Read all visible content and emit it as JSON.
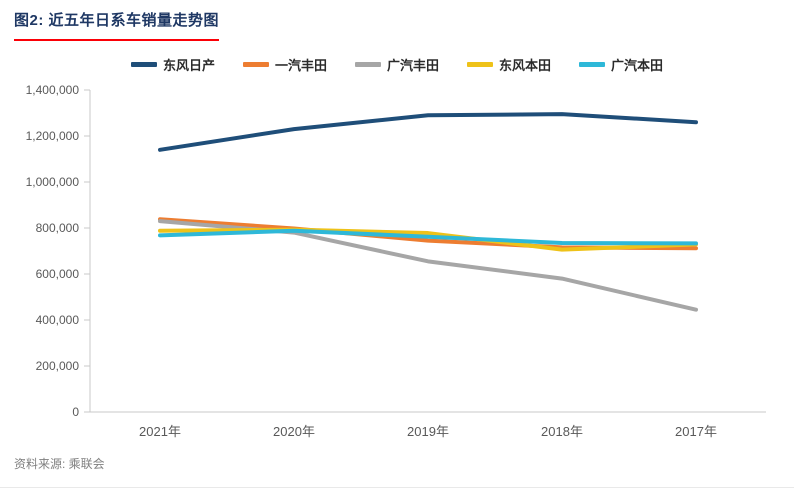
{
  "header": {
    "title": "图2: 近五年日系车销量走势图"
  },
  "footer": {
    "source": "资料来源: 乘联会"
  },
  "chart_data": {
    "type": "line",
    "title": "近五年日系车销量走势图",
    "categories": [
      "2021年",
      "2020年",
      "2019年",
      "2018年",
      "2017年"
    ],
    "series": [
      {
        "name": "东风日产",
        "color": "#1f4e79",
        "values": [
          1140000,
          1230000,
          1290000,
          1295000,
          1260000
        ]
      },
      {
        "name": "一汽丰田",
        "color": "#ed7d31",
        "values": [
          838000,
          798000,
          745000,
          716000,
          712000
        ]
      },
      {
        "name": "广汽丰田",
        "color": "#a6a6a6",
        "values": [
          830000,
          780000,
          655000,
          580000,
          445000
        ]
      },
      {
        "name": "东风本田",
        "color": "#eec219",
        "values": [
          788000,
          793000,
          778000,
          706000,
          729000
        ]
      },
      {
        "name": "广汽本田",
        "color": "#2eb8d8",
        "values": [
          768000,
          788000,
          762000,
          735000,
          733000
        ]
      }
    ],
    "ylim": [
      0,
      1400000
    ],
    "ytick_step": 200000,
    "ytick_labels": [
      "0",
      "200,000",
      "400,000",
      "600,000",
      "800,000",
      "1,000,000",
      "1,200,000",
      "1,400,000"
    ],
    "xlabel": "",
    "ylabel": "",
    "grid": false,
    "legend_position": "top"
  }
}
